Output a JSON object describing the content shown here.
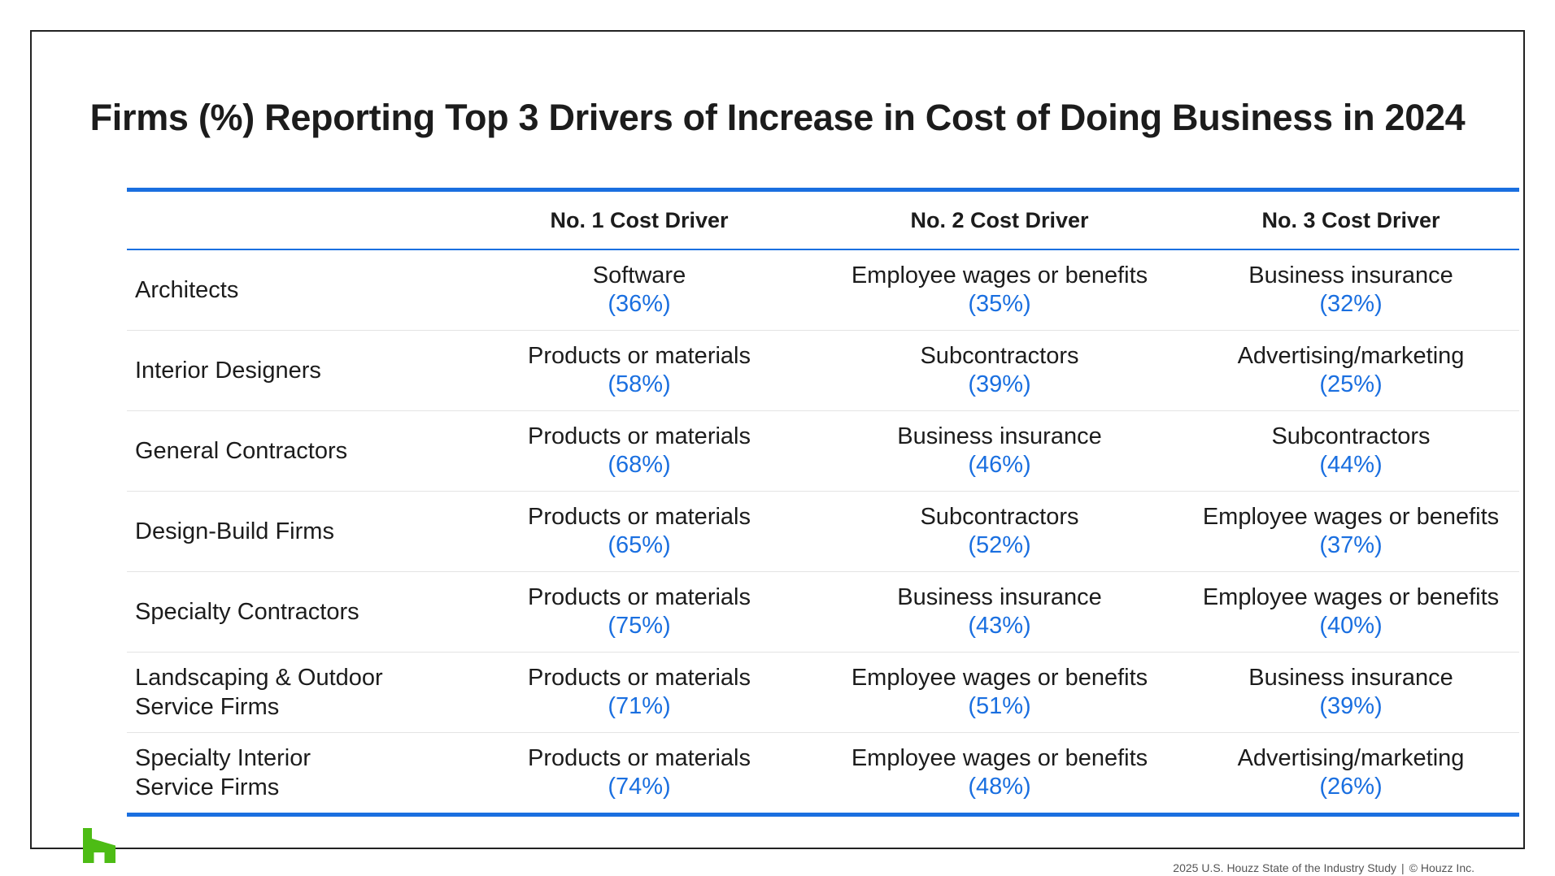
{
  "title": "Firms (%) Reporting Top 3 Drivers of Increase in Cost of Doing Business in 2024",
  "footer": {
    "source": "2025 U.S. Houzz State of the Industry Study",
    "separator": "|",
    "copyright": "© Houzz Inc."
  },
  "colors": {
    "accent": "#1a6fe0",
    "logo": "#4dbc15",
    "text": "#1c1c1c"
  },
  "logo_icon": "houzz-logo-icon",
  "chart_data": {
    "type": "table",
    "title": "Firms (%) Reporting Top 3 Drivers of Increase in Cost of Doing Business in 2024",
    "columns": [
      "",
      "No. 1 Cost Driver",
      "No. 2 Cost Driver",
      "No. 3 Cost Driver"
    ],
    "rows": [
      {
        "label": [
          "Architects"
        ],
        "cells": [
          {
            "driver": "Software",
            "pct": "(36%)"
          },
          {
            "driver": "Employee wages or benefits",
            "pct": "(35%)"
          },
          {
            "driver": "Business insurance",
            "pct": "(32%)"
          }
        ]
      },
      {
        "label": [
          "Interior Designers"
        ],
        "cells": [
          {
            "driver": "Products or materials",
            "pct": "(58%)"
          },
          {
            "driver": "Subcontractors",
            "pct": "(39%)"
          },
          {
            "driver": "Advertising/marketing",
            "pct": "(25%)"
          }
        ]
      },
      {
        "label": [
          "General Contractors"
        ],
        "cells": [
          {
            "driver": "Products or materials",
            "pct": "(68%)"
          },
          {
            "driver": "Business insurance",
            "pct": "(46%)"
          },
          {
            "driver": "Subcontractors",
            "pct": "(44%)"
          }
        ]
      },
      {
        "label": [
          "Design-Build Firms"
        ],
        "cells": [
          {
            "driver": "Products or materials",
            "pct": "(65%)"
          },
          {
            "driver": "Subcontractors",
            "pct": "(52%)"
          },
          {
            "driver": "Employee wages or benefits",
            "pct": "(37%)"
          }
        ]
      },
      {
        "label": [
          "Specialty Contractors"
        ],
        "cells": [
          {
            "driver": "Products or materials",
            "pct": "(75%)"
          },
          {
            "driver": "Business insurance",
            "pct": "(43%)"
          },
          {
            "driver": "Employee wages or benefits",
            "pct": "(40%)"
          }
        ]
      },
      {
        "label": [
          "Landscaping & Outdoor",
          "Service Firms"
        ],
        "cells": [
          {
            "driver": "Products or materials",
            "pct": "(71%)"
          },
          {
            "driver": "Employee wages or benefits",
            "pct": "(51%)"
          },
          {
            "driver": "Business insurance",
            "pct": "(39%)"
          }
        ]
      },
      {
        "label": [
          "Specialty Interior",
          "Service Firms"
        ],
        "cells": [
          {
            "driver": "Products or materials",
            "pct": "(74%)"
          },
          {
            "driver": "Employee wages or benefits",
            "pct": "(48%)"
          },
          {
            "driver": "Advertising/marketing",
            "pct": "(26%)"
          }
        ]
      }
    ]
  }
}
